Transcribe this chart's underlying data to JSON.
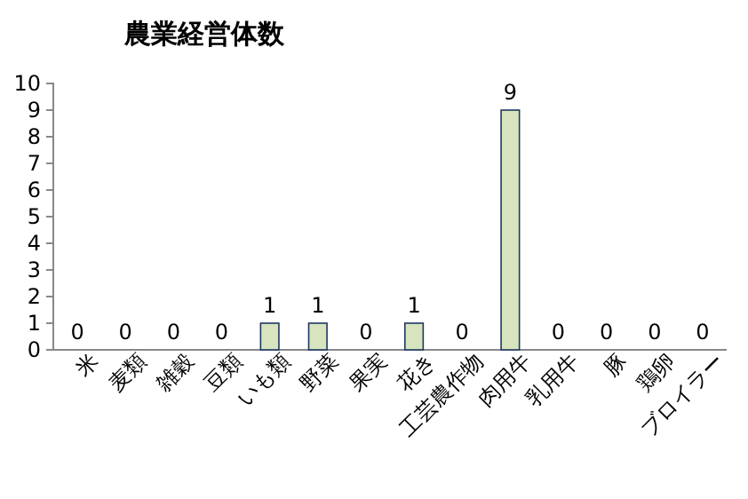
{
  "chart_data": {
    "type": "bar",
    "title": "農業経営体数",
    "categories": [
      "米",
      "麦類",
      "雑穀",
      "豆類",
      "いも類",
      "野菜",
      "果実",
      "花き",
      "工芸農作物",
      "肉用牛",
      "乳用牛",
      "豚",
      "鶏卵",
      "ブロイラー"
    ],
    "values": [
      0,
      0,
      0,
      0,
      1,
      1,
      0,
      1,
      0,
      9,
      0,
      0,
      0,
      0
    ],
    "color": "#d7e4bd",
    "ylim": [
      0,
      10
    ],
    "yticks": [
      0,
      1,
      2,
      3,
      4,
      5,
      6,
      7,
      8,
      9,
      10
    ],
    "data_labels": true
  }
}
